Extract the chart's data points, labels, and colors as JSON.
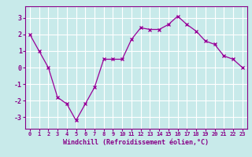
{
  "x": [
    0,
    1,
    2,
    3,
    4,
    5,
    6,
    7,
    8,
    9,
    10,
    11,
    12,
    13,
    14,
    15,
    16,
    17,
    18,
    19,
    20,
    21,
    22,
    23
  ],
  "y": [
    2.0,
    1.0,
    0.0,
    -1.8,
    -2.2,
    -3.2,
    -2.2,
    -1.2,
    0.5,
    0.5,
    0.5,
    1.7,
    2.4,
    2.3,
    2.3,
    2.6,
    3.1,
    2.6,
    2.2,
    1.6,
    1.4,
    0.7,
    0.5,
    0.0
  ],
  "xlabel": "Windchill (Refroidissement éolien,°C)",
  "xlim": [
    -0.5,
    23.5
  ],
  "ylim": [
    -3.7,
    3.7
  ],
  "yticks": [
    -3,
    -2,
    -1,
    0,
    1,
    2,
    3
  ],
  "xticks": [
    0,
    1,
    2,
    3,
    4,
    5,
    6,
    7,
    8,
    9,
    10,
    11,
    12,
    13,
    14,
    15,
    16,
    17,
    18,
    19,
    20,
    21,
    22,
    23
  ],
  "line_color": "#990099",
  "marker": "x",
  "bg_color": "#c8eaea",
  "grid_color": "#ffffff",
  "tick_color": "#880088",
  "label_color": "#880088",
  "spine_color": "#880088"
}
